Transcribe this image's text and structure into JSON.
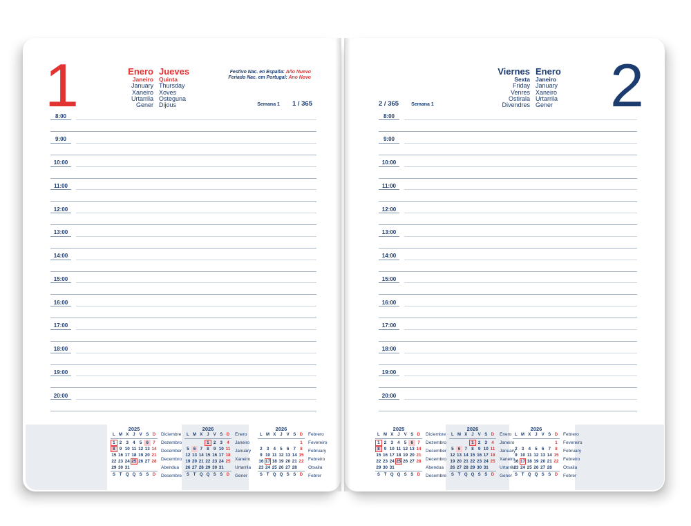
{
  "colors": {
    "navy": "#1c3b6e",
    "red": "#e23333",
    "pink_highlight": "#f8d2d2",
    "panel_gray": "#e9edf1",
    "hour_line": "#ccd5de",
    "separator_line": "#a2b2c2"
  },
  "pages": [
    {
      "side": "left",
      "day_number": "1",
      "holiday": true,
      "months": [
        "Enero",
        "Janeiro",
        "January",
        "Xaneiro",
        "Urtarrila",
        "Gener"
      ],
      "days": [
        "Jueves",
        "Quinta",
        "Thursday",
        "Xoves",
        "Osteguna",
        "Dijous"
      ],
      "holiday_notes": [
        {
          "label": "Festivo Nac. en España: ",
          "value": "Año Nuevo"
        },
        {
          "label": "Feriado Nac. em Portugal: ",
          "value": "Ano Novo"
        }
      ],
      "week_label": "Semana 1",
      "day_count": "1 / 365"
    },
    {
      "side": "right",
      "day_number": "2",
      "holiday": false,
      "months": [
        "Enero",
        "Janeiro",
        "January",
        "Xaneiro",
        "Urtarrila",
        "Gener"
      ],
      "days": [
        "Viernes",
        "Sexta",
        "Friday",
        "Venres",
        "Ostirala",
        "Divendres"
      ],
      "holiday_notes": [],
      "week_label": "Semana 1",
      "day_count": "2 / 365"
    }
  ],
  "times": [
    "8:00",
    "9:00",
    "10:00",
    "11:00",
    "12:00",
    "13:00",
    "14:00",
    "15:00",
    "16:00",
    "17:00",
    "18:00",
    "19:00",
    "20:00"
  ],
  "mini_calendars": [
    {
      "year": "2025",
      "weekday_header": [
        "L",
        "M",
        "X",
        "J",
        "V",
        "S",
        "D"
      ],
      "weekday_footer": [
        "S",
        "T",
        "Q",
        "Q",
        "S",
        "S",
        "D"
      ],
      "weeks": [
        [
          "1",
          "2",
          "3",
          "4",
          "5",
          "6",
          "7"
        ],
        [
          "8",
          "9",
          "10",
          "11",
          "12",
          "13",
          "14"
        ],
        [
          "15",
          "16",
          "17",
          "18",
          "19",
          "20",
          "21"
        ],
        [
          "22",
          "23",
          "24",
          "25",
          "26",
          "27",
          "28"
        ],
        [
          "29",
          "30",
          "31",
          "",
          "",
          "",
          ""
        ]
      ],
      "boxed_days": [
        "1",
        "8",
        "25"
      ],
      "pink_days": [
        "6",
        "8",
        "25"
      ],
      "month_names": [
        "Diciembre",
        "Dezembro",
        "December",
        "Decembro",
        "Abendua",
        "Desembre"
      ]
    },
    {
      "year": "2026",
      "weekday_header": [
        "L",
        "M",
        "X",
        "J",
        "V",
        "S",
        "D"
      ],
      "weekday_footer": [
        "S",
        "T",
        "Q",
        "Q",
        "S",
        "S",
        "D"
      ],
      "weeks": [
        [
          "",
          "",
          "",
          "1",
          "2",
          "3",
          "4"
        ],
        [
          "5",
          "6",
          "7",
          "8",
          "9",
          "10",
          "11"
        ],
        [
          "12",
          "13",
          "14",
          "15",
          "16",
          "17",
          "18"
        ],
        [
          "19",
          "20",
          "21",
          "22",
          "23",
          "24",
          "25"
        ],
        [
          "26",
          "27",
          "28",
          "29",
          "30",
          "31",
          ""
        ]
      ],
      "boxed_days": [
        "1"
      ],
      "pink_days": [
        "1",
        "6"
      ],
      "month_names": [
        "Enero",
        "Janeiro",
        "January",
        "Xaneiro",
        "Urtarrila",
        "Gener"
      ],
      "highlighted": true
    },
    {
      "year": "2026",
      "weekday_header": [
        "L",
        "M",
        "X",
        "J",
        "V",
        "S",
        "D"
      ],
      "weekday_footer": [
        "S",
        "T",
        "Q",
        "Q",
        "S",
        "S",
        "D"
      ],
      "weeks": [
        [
          "",
          "",
          "",
          "",
          "",
          "",
          "1"
        ],
        [
          "2",
          "3",
          "4",
          "5",
          "6",
          "7",
          "8"
        ],
        [
          "9",
          "10",
          "11",
          "12",
          "13",
          "14",
          "15"
        ],
        [
          "16",
          "17",
          "18",
          "19",
          "20",
          "21",
          "22"
        ],
        [
          "23",
          "24",
          "25",
          "26",
          "27",
          "28",
          ""
        ]
      ],
      "boxed_days": [
        "17"
      ],
      "pink_days": [],
      "month_names": [
        "Febrero",
        "Fevereiro",
        "February",
        "Febreiro",
        "Otsaila",
        "Febrer"
      ]
    }
  ]
}
